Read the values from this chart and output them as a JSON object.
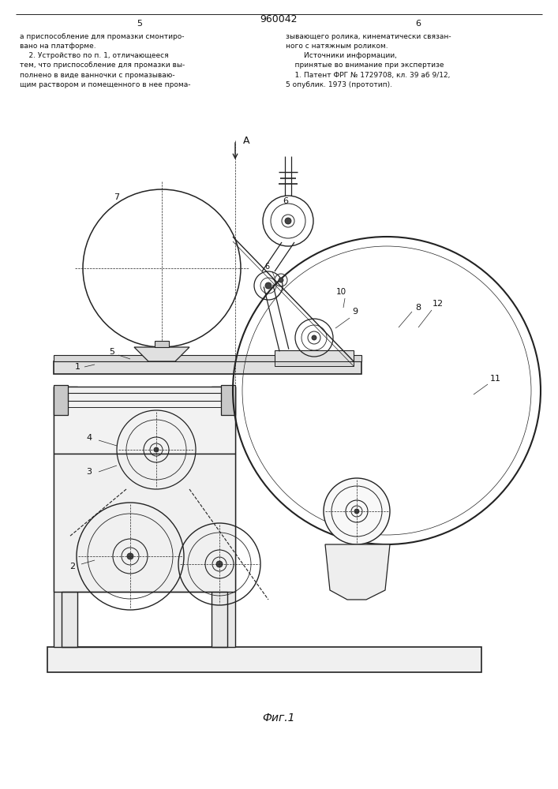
{
  "page_number_center": "960042",
  "page_number_left": "5",
  "page_number_right": "6",
  "text_left": "а приспособление для промазки смонтиро-\nвано на платформе.\n    2. Устройство по п. 1, отличающееся\nтем, что приспособление для промазки вы-\nполнено в виде ванночки с промазываю-\nщим раствором и помещенного в нее прома-",
  "text_right": "зывающего ролика, кинематически связан-\nного с натяжным роликом.\n        Источники информации,\n    принятые во внимание при экспертизе\n    1. Патент ФРГ № 1729708, кл. 39 а6 9/12,\n5 опублик. 1973 (прототип).",
  "figure_caption": "Фиг.1",
  "bg_color": "#ffffff",
  "line_color": "#222222",
  "text_color": "#111111"
}
